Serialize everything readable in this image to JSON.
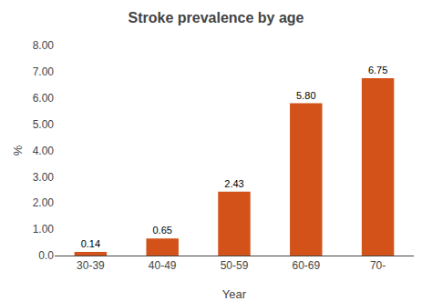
{
  "chart_data": {
    "type": "bar",
    "title": "Stroke prevalence by age",
    "xlabel": "Year",
    "ylabel": "%",
    "categories": [
      "30-39",
      "40-49",
      "50-59",
      "60-69",
      "70-"
    ],
    "values": [
      0.14,
      0.65,
      2.43,
      5.8,
      6.75
    ],
    "value_labels": [
      "0.14",
      "0.65",
      "2.43",
      "5.80",
      "6.75"
    ],
    "data_labels": true,
    "color": "#D2521A",
    "ylim": [
      0,
      8.0
    ],
    "yticks": [
      {
        "value": 0.0,
        "label": "0.0"
      },
      {
        "value": 1.0,
        "label": "1.00"
      },
      {
        "value": 2.0,
        "label": "2.00"
      },
      {
        "value": 3.0,
        "label": "3.00"
      },
      {
        "value": 4.0,
        "label": "4.00"
      },
      {
        "value": 5.0,
        "label": "5.00"
      },
      {
        "value": 6.0,
        "label": "6.00"
      },
      {
        "value": 7.0,
        "label": "7.00"
      },
      {
        "value": 8.0,
        "label": "8.00"
      }
    ],
    "grid": false
  }
}
